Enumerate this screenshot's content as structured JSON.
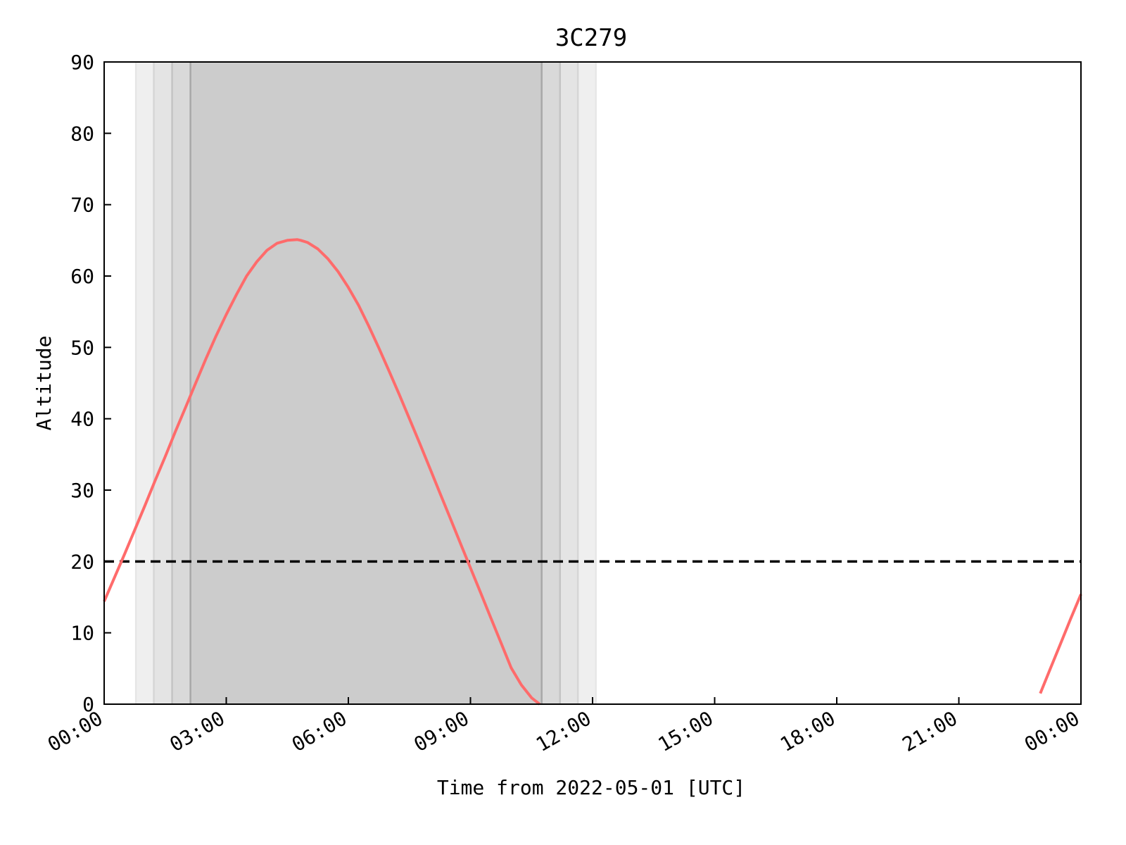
{
  "chart_data": {
    "type": "line",
    "title": "3C279",
    "xlabel": "Time from 2022-05-01 [UTC]",
    "ylabel": "Altitude",
    "x_unit": "hours",
    "xlim": [
      0,
      24
    ],
    "ylim": [
      0,
      90
    ],
    "x_tick_labels": [
      "00:00",
      "03:00",
      "06:00",
      "09:00",
      "12:00",
      "15:00",
      "18:00",
      "21:00",
      "00:00"
    ],
    "y_ticks": [
      0,
      10,
      20,
      30,
      40,
      50,
      60,
      70,
      80,
      90
    ],
    "grid": false,
    "altitude_limit": 20,
    "twilight_bands": [
      {
        "kind": "civil",
        "start": 0.78,
        "end": 12.08,
        "color": "#efefef"
      },
      {
        "kind": "nautical",
        "start": 1.22,
        "end": 11.64,
        "color": "#e4e4e4"
      },
      {
        "kind": "astronomical",
        "start": 1.67,
        "end": 11.2,
        "color": "#d9d9d9"
      },
      {
        "kind": "night",
        "start": 2.12,
        "end": 10.75,
        "color": "#cccccc"
      }
    ],
    "series": [
      {
        "color": "#ff6b6b",
        "segments": [
          {
            "x": [
              0.0,
              0.25,
              0.5,
              0.75,
              1.0,
              1.25,
              1.5,
              1.75,
              2.0,
              2.25,
              2.5,
              2.75,
              3.0,
              3.25,
              3.5,
              3.75,
              4.0,
              4.25,
              4.5,
              4.75,
              4.83,
              5.0,
              5.25,
              5.5,
              5.75,
              6.0,
              6.25,
              6.5,
              6.75,
              7.0,
              7.25,
              7.5,
              7.75,
              8.0,
              8.25,
              8.5,
              8.75,
              9.0,
              9.25,
              9.5,
              9.75,
              10.0,
              10.25,
              10.5,
              10.7
            ],
            "y": [
              14.4,
              17.7,
              21.0,
              24.4,
              27.8,
              31.3,
              34.7,
              38.2,
              41.6,
              45.0,
              48.4,
              51.6,
              54.6,
              57.4,
              60.0,
              62.0,
              63.6,
              64.6,
              65.0,
              65.1,
              65.0,
              64.7,
              63.8,
              62.4,
              60.6,
              58.4,
              55.9,
              53.0,
              49.9,
              46.7,
              43.4,
              40.0,
              36.6,
              33.1,
              29.6,
              26.1,
              22.6,
              19.1,
              15.6,
              12.1,
              8.6,
              5.1,
              2.7,
              0.9,
              0.0
            ]
          },
          {
            "x": [
              23.0,
              23.25,
              23.5,
              23.75,
              24.0
            ],
            "y": [
              1.5,
              5.0,
              8.5,
              12.0,
              15.4
            ]
          }
        ]
      }
    ]
  }
}
